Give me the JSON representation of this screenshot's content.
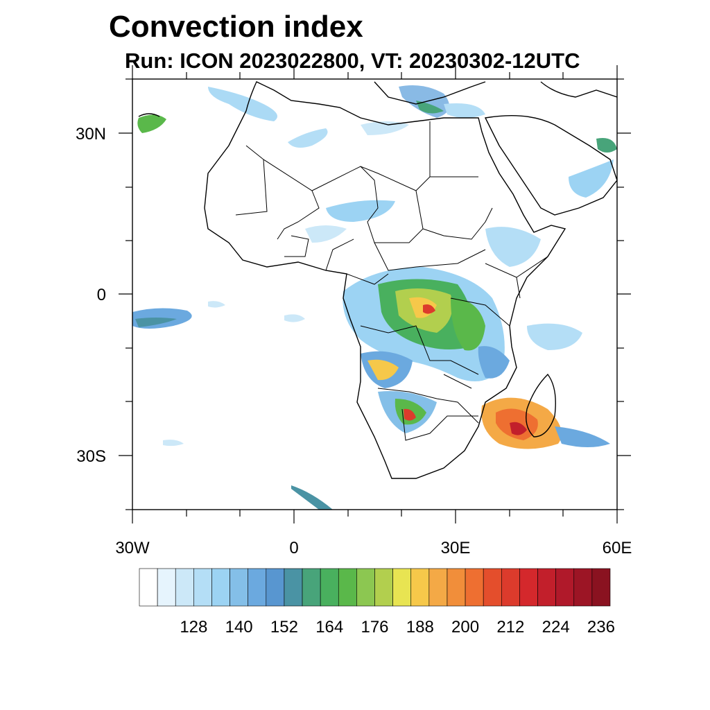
{
  "title": "Convection index",
  "subtitle": "Run: ICON 2023022800,  VT: 20230302-12UTC",
  "axes": {
    "y_ticks": [
      {
        "label": "30N",
        "lat": 30
      },
      {
        "label": "0",
        "lat": 0
      },
      {
        "label": "30S",
        "lat": -30
      }
    ],
    "x_ticks": [
      {
        "label": "30W",
        "lon": -30
      },
      {
        "label": "0",
        "lon": 0
      },
      {
        "label": "30E",
        "lon": 30
      },
      {
        "label": "60E",
        "lon": 60
      }
    ],
    "lon_range": [
      -30,
      60
    ],
    "lat_range": [
      -40,
      40
    ]
  },
  "colorbar": {
    "colors": [
      "#ffffff",
      "#e6f4fd",
      "#cce8f8",
      "#b4def6",
      "#9cd3f3",
      "#84bfe8",
      "#6ba9df",
      "#5896d0",
      "#4a93a4",
      "#48a47a",
      "#49b05e",
      "#5ab84a",
      "#8cc751",
      "#b2cf4e",
      "#e8e452",
      "#f6c84a",
      "#f4a946",
      "#f18e3a",
      "#ee6f31",
      "#e44e2c",
      "#dc3b2c",
      "#d4282c",
      "#c21f2b",
      "#b0192a",
      "#9c1525",
      "#8a1220"
    ],
    "tick_labels": [
      "128",
      "140",
      "152",
      "164",
      "176",
      "188",
      "200",
      "212",
      "224",
      "236"
    ]
  },
  "legend_colors": {
    "land_border": "#000000",
    "frame": "#000000"
  }
}
